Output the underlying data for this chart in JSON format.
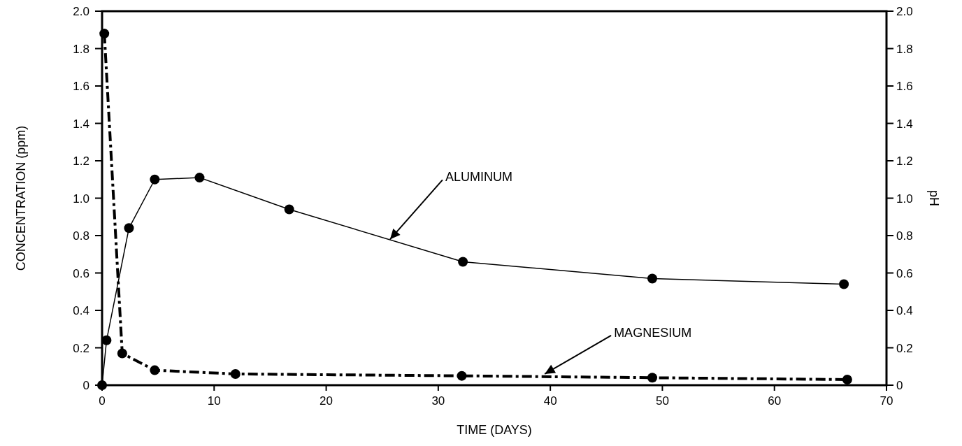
{
  "chart_data": {
    "type": "line",
    "xlabel": "TIME  (DAYS)",
    "ylabel": "CONCENTRATION  (ppm)",
    "y2label": "pH",
    "xlim": [
      0,
      70
    ],
    "xticks": [
      0,
      10,
      20,
      30,
      40,
      50,
      60,
      70
    ],
    "ylim": [
      0,
      2.0
    ],
    "yticks": [
      0,
      0.2,
      0.4,
      0.6,
      0.8,
      {
        "value": 1,
        "label": "1.0"
      },
      1.2,
      1.4,
      1.6,
      1.8,
      {
        "value": 2,
        "label": "2.0"
      }
    ],
    "y2lim": [
      0,
      2.0
    ],
    "y2ticks": [
      0,
      0.2,
      0.4,
      0.6,
      0.8,
      {
        "value": 1,
        "label": "1.0"
      },
      1.2,
      1.4,
      1.6,
      1.8,
      {
        "value": 2,
        "label": "2.0"
      }
    ],
    "marker": "circle",
    "grid": false,
    "series": [
      {
        "color": "#000000",
        "line_style": "solid",
        "x": [
          0,
          0.4,
          2.4,
          4.7,
          8.7,
          16.7,
          32.2,
          49.1,
          66.2
        ],
        "values": [
          0,
          0.24,
          0.84,
          1.1,
          1.11,
          0.94,
          0.66,
          0.57,
          0.54
        ]
      },
      {
        "color": "#000000",
        "line_style": "dashdot",
        "x": [
          0.2,
          1.8,
          4.7,
          11.9,
          32.1,
          49.1,
          66.5
        ],
        "values": [
          1.88,
          0.17,
          0.08,
          0.06,
          0.05,
          0.04,
          0.03
        ]
      }
    ],
    "annotations": [
      {
        "text": "ALUMINUM",
        "x": 25.7,
        "y": 0.78
      },
      {
        "text": "MAGNESIUM",
        "x": 39.5,
        "y": 0.06
      }
    ]
  }
}
